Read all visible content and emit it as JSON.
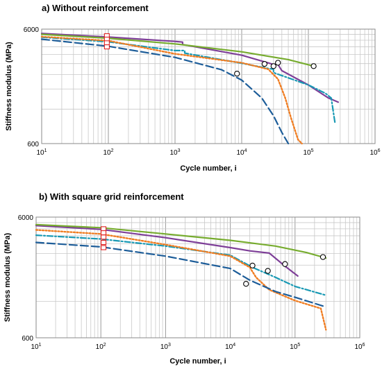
{
  "chart_data": [
    {
      "type": "line",
      "title": "a) Without reinforcement",
      "xlabel": "Cycle number, i",
      "ylabel": "Stiffness modulus (MPa)",
      "xscale": "log",
      "yscale": "log",
      "xlim": [
        10,
        1000000
      ],
      "ylim": [
        600,
        6000
      ],
      "xticks": [
        {
          "base": "10",
          "exp": "1"
        },
        {
          "base": "10",
          "exp": "2"
        },
        {
          "base": "10",
          "exp": "3"
        },
        {
          "base": "10",
          "exp": "4"
        },
        {
          "base": "10",
          "exp": "5"
        },
        {
          "base": "10",
          "exp": "6"
        }
      ],
      "yticks": [
        "600",
        "6000"
      ],
      "grid": true,
      "series": [
        {
          "color": "#7e3f98",
          "dash": "solid",
          "points": [
            [
              10,
              5500
            ],
            [
              100,
              5120
            ],
            [
              1000,
              4690
            ],
            [
              1300,
              4620
            ],
            [
              1300,
              4400
            ],
            [
              10000,
              3550
            ],
            [
              30000,
              2950
            ],
            [
              35000,
              2950
            ],
            [
              40000,
              2600
            ],
            [
              100000,
              1950
            ],
            [
              200000,
              1500
            ],
            [
              280000,
              1380
            ]
          ]
        },
        {
          "color": "#77ac2f",
          "dash": "solid",
          "points": [
            [
              10,
              5400
            ],
            [
              100,
              5000
            ],
            [
              1000,
              4460
            ],
            [
              10000,
              3800
            ],
            [
              50000,
              3250
            ],
            [
              120000,
              2850
            ]
          ]
        },
        {
          "color": "#1899b4",
          "dash": "dashdot",
          "points": [
            [
              10,
              5100
            ],
            [
              100,
              4650
            ],
            [
              1000,
              3900
            ],
            [
              1400,
              3900
            ],
            [
              1400,
              3700
            ],
            [
              10000,
              3020
            ],
            [
              25000,
              2720
            ],
            [
              30000,
              2680
            ],
            [
              30000,
              2500
            ],
            [
              100000,
              1950
            ],
            [
              180000,
              1650
            ],
            [
              220000,
              1500
            ],
            [
              250000,
              920
            ]
          ]
        },
        {
          "color": "#f07d22",
          "dash": "dot",
          "points": [
            [
              10,
              5150
            ],
            [
              100,
              4750
            ],
            [
              1000,
              3650
            ],
            [
              10000,
              3050
            ],
            [
              25000,
              2680
            ],
            [
              35000,
              2200
            ],
            [
              45000,
              1500
            ],
            [
              55000,
              1000
            ],
            [
              70000,
              650
            ],
            [
              80000,
              600
            ]
          ]
        },
        {
          "color": "#1d5d99",
          "dash": "longdash",
          "points": [
            [
              10,
              4900
            ],
            [
              100,
              4250
            ],
            [
              1000,
              3400
            ],
            [
              5000,
              2650
            ],
            [
              10000,
              2150
            ],
            [
              20000,
              1500
            ],
            [
              30000,
              1050
            ],
            [
              40000,
              750
            ],
            [
              50000,
              600
            ]
          ]
        }
      ],
      "failure_points": [
        [
          8500,
          2450
        ],
        [
          22000,
          2980
        ],
        [
          30000,
          2850
        ],
        [
          35000,
          3050
        ],
        [
          120000,
          2850
        ]
      ],
      "rect_markers": [
        [
          95,
          5250
        ],
        [
          95,
          4900
        ],
        [
          95,
          4550
        ],
        [
          95,
          4200
        ]
      ]
    },
    {
      "type": "line",
      "title": "b) With square grid reinforcement",
      "xlabel": "Cycle number, i",
      "ylabel": "Stiffness modulus (MPa)",
      "xscale": "log",
      "yscale": "log",
      "xlim": [
        10,
        1000000
      ],
      "ylim": [
        600,
        6000
      ],
      "xticks": [
        {
          "base": "10",
          "exp": "1"
        },
        {
          "base": "10",
          "exp": "2"
        },
        {
          "base": "10",
          "exp": "3"
        },
        {
          "base": "10",
          "exp": "4"
        },
        {
          "base": "10",
          "exp": "5"
        },
        {
          "base": "10",
          "exp": "6"
        }
      ],
      "yticks": [
        "600",
        "6000"
      ],
      "grid": true,
      "series": [
        {
          "color": "#7e3f98",
          "dash": "solid",
          "points": [
            [
              10,
              5100
            ],
            [
              100,
              4750
            ],
            [
              1000,
              4050
            ],
            [
              10000,
              3350
            ],
            [
              20000,
              3150
            ],
            [
              40000,
              3020
            ],
            [
              70000,
              2350
            ],
            [
              110000,
              1950
            ]
          ]
        },
        {
          "color": "#77ac2f",
          "dash": "solid",
          "points": [
            [
              10,
              5200
            ],
            [
              100,
              4900
            ],
            [
              1000,
              4350
            ],
            [
              10000,
              3850
            ],
            [
              50000,
              3450
            ],
            [
              150000,
              3050
            ],
            [
              300000,
              2750
            ]
          ]
        },
        {
          "color": "#1899b4",
          "dash": "dashdot",
          "points": [
            [
              10,
              4250
            ],
            [
              100,
              3950
            ],
            [
              1000,
              3450
            ],
            [
              10000,
              2900
            ],
            [
              22000,
              2300
            ],
            [
              50000,
              1900
            ],
            [
              100000,
              1600
            ],
            [
              300000,
              1350
            ]
          ]
        },
        {
          "color": "#f07d22",
          "dash": "dot",
          "points": [
            [
              10,
              4700
            ],
            [
              100,
              4350
            ],
            [
              1000,
              3550
            ],
            [
              10000,
              2850
            ],
            [
              20000,
              2300
            ],
            [
              25000,
              1900
            ],
            [
              40000,
              1500
            ],
            [
              100000,
              1220
            ],
            [
              250000,
              1050
            ],
            [
              300000,
              700
            ]
          ]
        },
        {
          "color": "#1d5d99",
          "dash": "longdash",
          "points": [
            [
              10,
              3700
            ],
            [
              100,
              3400
            ],
            [
              1000,
              2850
            ],
            [
              10000,
              2250
            ],
            [
              20000,
              1800
            ],
            [
              50000,
              1450
            ],
            [
              100000,
              1300
            ],
            [
              270000,
              1100
            ]
          ]
        }
      ],
      "failure_points": [
        [
          17500,
          1680
        ],
        [
          22000,
          2380
        ],
        [
          38000,
          2150
        ],
        [
          70000,
          2450
        ],
        [
          270000,
          2800
        ]
      ],
      "rect_markers": [
        [
          110,
          4800
        ],
        [
          110,
          4450
        ],
        [
          110,
          4100
        ],
        [
          110,
          3700
        ],
        [
          110,
          3350
        ]
      ]
    }
  ]
}
